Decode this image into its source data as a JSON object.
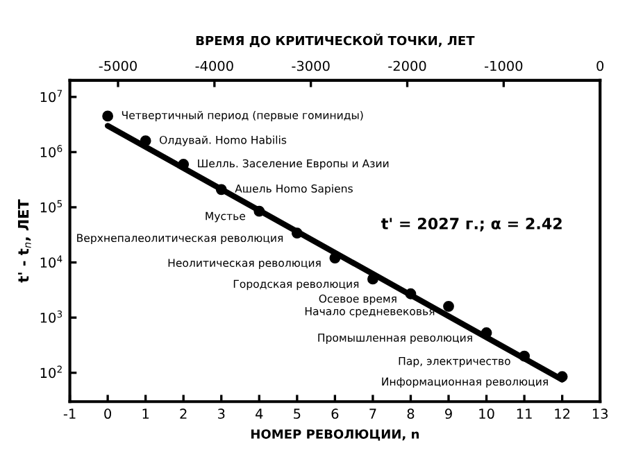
{
  "chart_data": {
    "type": "scatter",
    "xlabel": "НОМЕР РЕВОЛЮЦИИ, n",
    "ylabel": "t' - t$_{n}$, ЛЕТ",
    "x2label": "ВРЕМЯ ДО КРИТИЧЕСКОЙ ТОЧКИ, ЛЕТ",
    "log": "y",
    "xlim": [
      -1,
      13
    ],
    "xticks": [
      -1,
      0,
      1,
      2,
      3,
      4,
      5,
      6,
      7,
      8,
      9,
      10,
      11,
      12,
      13
    ],
    "ylim": [
      30,
      20000000
    ],
    "yticks": [
      {
        "value": 100,
        "label": "10$^{2}$"
      },
      {
        "value": 1000,
        "label": "10$^{3}$"
      },
      {
        "value": 10000,
        "label": "10$^{4}$"
      },
      {
        "value": 100000,
        "label": "10$^{5}$"
      },
      {
        "value": 1000000,
        "label": "10$^{6}$"
      },
      {
        "value": 10000000,
        "label": "10$^{7}$"
      }
    ],
    "x2lim": [
      -5500,
      0
    ],
    "x2ticks": [
      -5000,
      -4000,
      -3000,
      -2000,
      -1000,
      0
    ],
    "series": [
      {
        "marker": "circle",
        "color": "#000000",
        "x": [
          0,
          1,
          2,
          3,
          4,
          5,
          6,
          7,
          8,
          9,
          10,
          11,
          12
        ],
        "values": [
          4500000,
          1600000,
          600000,
          210000,
          85000,
          34000,
          12000,
          5000,
          2700,
          1600,
          530,
          200,
          85
        ]
      },
      {
        "type": "line",
        "color": "#000000",
        "x": [
          0,
          12
        ],
        "values": [
          3000000,
          75
        ]
      }
    ],
    "annotations": [
      {
        "text": "Четвертичный период (первые гоминиды)",
        "x": 0,
        "y": 4500000
      },
      {
        "text": "Олдувай. Homo Habilis",
        "x": 1,
        "y": 1600000
      },
      {
        "text": "Шелль. Заселение Европы и Азии",
        "x": 2,
        "y": 600000
      },
      {
        "text": "Ашель Homo Sapiens",
        "x": 3,
        "y": 210000
      },
      {
        "text": "Мустье",
        "x": 4,
        "y": 85000
      },
      {
        "text": "Верхнепалеолитическая революция",
        "x": 5,
        "y": 34000
      },
      {
        "text": "Неолитическая революция",
        "x": 6,
        "y": 12000
      },
      {
        "text": "Городская революция",
        "x": 7,
        "y": 5000
      },
      {
        "text": "Осевое время",
        "x": 8,
        "y": 2700
      },
      {
        "text": "Начало средневековья",
        "x": 9,
        "y": 1600
      },
      {
        "text": "Промышленная революция",
        "x": 10,
        "y": 530
      },
      {
        "text": "Пар, электричество",
        "x": 11,
        "y": 200
      },
      {
        "text": "Информационная революция",
        "x": 12,
        "y": 85
      },
      "t' = 2027 г.; α = 2.42"
    ]
  }
}
